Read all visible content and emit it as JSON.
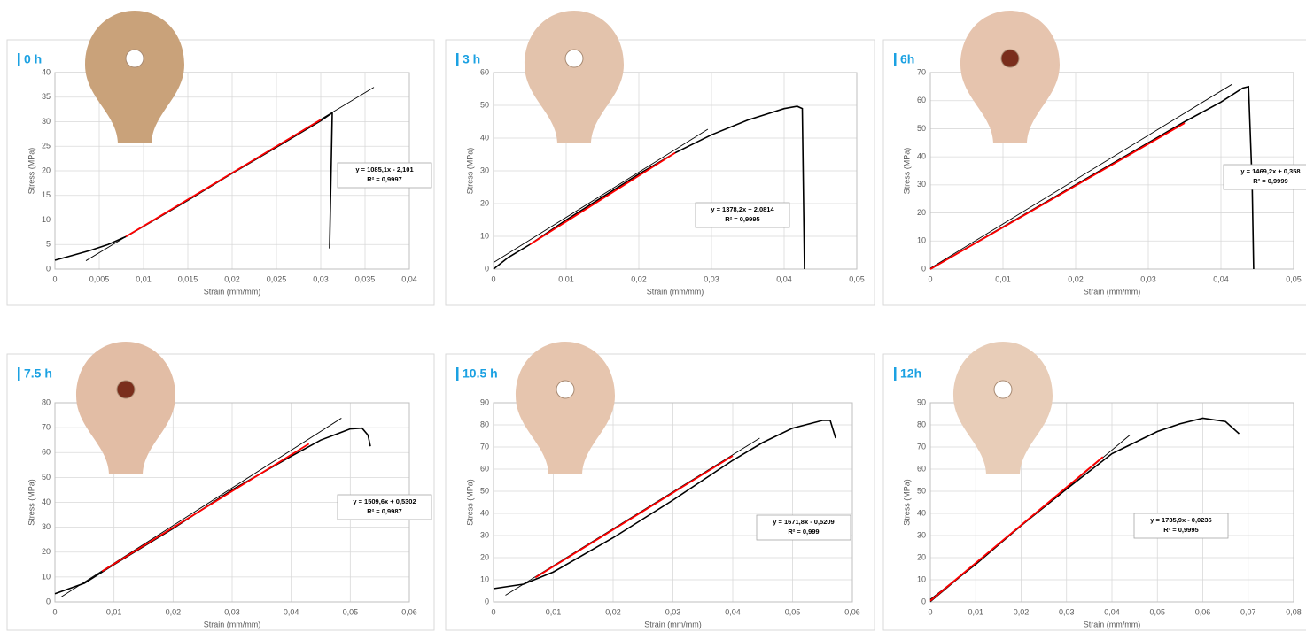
{
  "chart_data": [
    {
      "type": "line",
      "title": "0 h",
      "x_label": "Strain (mm/mm)",
      "y_label": "Stress (MPa)",
      "grid": true,
      "xlim": [
        0,
        0.04
      ],
      "ylim": [
        0,
        40
      ],
      "xticks": [
        0,
        {
          "value": 0.005,
          "label": "0,005"
        },
        {
          "value": 0.01,
          "label": "0,01"
        },
        {
          "value": 0.015,
          "label": "0,015"
        },
        {
          "value": 0.02,
          "label": "0,02"
        },
        {
          "value": 0.025,
          "label": "0,025"
        },
        {
          "value": 0.03,
          "label": "0,03"
        },
        {
          "value": 0.035,
          "label": "0,035"
        },
        {
          "value": 0.04,
          "label": "0,04"
        }
      ],
      "yticks": [
        0,
        5,
        10,
        15,
        20,
        25,
        30,
        35,
        40
      ],
      "series": [
        {
          "color": "#000000",
          "x": [
            0,
            0.002,
            0.004,
            0.006,
            0.008,
            0.01,
            0.015,
            0.02,
            0.025,
            0.03,
            0.0313,
            0.031
          ],
          "values": [
            1.8,
            2.8,
            3.8,
            5,
            6.6,
            8.7,
            14,
            19.5,
            24.8,
            30.2,
            31.8,
            4.2
          ]
        },
        {
          "color": "#000000",
          "x": [
            0.0035,
            0.036
          ],
          "values": [
            1.7,
            37
          ]
        },
        {
          "color": "#ff0000",
          "x": [
            0.008,
            0.03
          ],
          "values": [
            6.6,
            30.4
          ]
        }
      ],
      "annotations": [
        "y = 1085,1x - 2,101",
        "R² = 0,9997"
      ]
    },
    {
      "type": "line",
      "title": "3 h",
      "x_label": "Strain (mm/mm)",
      "y_label": "Stress (MPa)",
      "grid": true,
      "xlim": [
        0,
        0.05
      ],
      "ylim": [
        0,
        60
      ],
      "xticks": [
        0,
        {
          "value": 0.01,
          "label": "0,01"
        },
        {
          "value": 0.02,
          "label": "0,02"
        },
        {
          "value": 0.03,
          "label": "0,03"
        },
        {
          "value": 0.04,
          "label": "0,04"
        },
        {
          "value": 0.05,
          "label": "0,05"
        }
      ],
      "yticks": [
        0,
        10,
        20,
        30,
        40,
        50,
        60
      ],
      "series": [
        {
          "color": "#000000",
          "x": [
            0,
            0.002,
            0.005,
            0.01,
            0.015,
            0.02,
            0.025,
            0.03,
            0.035,
            0.04,
            0.0418,
            0.0425,
            0.0428
          ],
          "values": [
            0,
            3.5,
            7.5,
            15,
            22,
            29,
            35.5,
            41,
            45.5,
            49,
            49.7,
            49,
            0
          ]
        },
        {
          "color": "#000000",
          "x": [
            0,
            0.0295
          ],
          "values": [
            2,
            42.7
          ]
        },
        {
          "color": "#ff0000",
          "x": [
            0.005,
            0.025
          ],
          "values": [
            7.5,
            35.5
          ]
        }
      ],
      "annotations": [
        "y = 1378,2x + 2,0814",
        "R² = 0,9995"
      ]
    },
    {
      "type": "line",
      "title": "6h",
      "x_label": "Strain (mm/mm)",
      "y_label": "Stress (MPa)",
      "grid": true,
      "xlim": [
        0,
        0.05
      ],
      "ylim": [
        0,
        70
      ],
      "xticks": [
        0,
        {
          "value": 0.01,
          "label": "0,01"
        },
        {
          "value": 0.02,
          "label": "0,02"
        },
        {
          "value": 0.03,
          "label": "0,03"
        },
        {
          "value": 0.04,
          "label": "0,04"
        },
        {
          "value": 0.05,
          "label": "0,05"
        }
      ],
      "yticks": [
        0,
        10,
        20,
        30,
        40,
        50,
        60,
        70
      ],
      "series": [
        {
          "color": "#000000",
          "x": [
            0,
            0.005,
            0.01,
            0.02,
            0.03,
            0.035,
            0.04,
            0.043,
            0.0438,
            0.0443,
            0.0445
          ],
          "values": [
            0,
            7.5,
            15,
            30,
            45,
            52.5,
            59.5,
            64.5,
            65,
            30,
            0
          ]
        },
        {
          "color": "#000000",
          "x": [
            0,
            0.0415
          ],
          "values": [
            0.3,
            65.8
          ]
        },
        {
          "color": "#ff0000",
          "x": [
            0,
            0.035
          ],
          "values": [
            0,
            52
          ]
        }
      ],
      "annotations": [
        "y = 1469,2x + 0,358",
        "R² = 0,9999"
      ]
    },
    {
      "type": "line",
      "title": "7.5 h",
      "x_label": "Strain (mm/mm)",
      "y_label": "Stress (MPa)",
      "grid": true,
      "xlim": [
        0,
        0.06
      ],
      "ylim": [
        0,
        80
      ],
      "xticks": [
        0,
        {
          "value": 0.01,
          "label": "0,01"
        },
        {
          "value": 0.02,
          "label": "0,02"
        },
        {
          "value": 0.03,
          "label": "0,03"
        },
        {
          "value": 0.04,
          "label": "0,04"
        },
        {
          "value": 0.05,
          "label": "0,05"
        },
        {
          "value": 0.06,
          "label": "0,06"
        }
      ],
      "yticks": [
        0,
        10,
        20,
        30,
        40,
        50,
        60,
        70,
        80
      ],
      "series": [
        {
          "color": "#000000",
          "x": [
            0,
            0.005,
            0.01,
            0.02,
            0.03,
            0.04,
            0.045,
            0.05,
            0.052,
            0.053,
            0.0534
          ],
          "values": [
            3.3,
            7.5,
            15,
            29.5,
            45,
            58.5,
            65,
            69.5,
            69.8,
            67,
            62.5
          ]
        },
        {
          "color": "#000000",
          "x": [
            0.001,
            0.0485
          ],
          "values": [
            1.9,
            73.8
          ]
        },
        {
          "color": "#ff0000",
          "x": [
            0.008,
            0.043
          ],
          "values": [
            12.3,
            63.5
          ]
        }
      ],
      "annotations": [
        "y = 1509,6x + 0,5302",
        "R² = 0,9987"
      ]
    },
    {
      "type": "line",
      "title": "10.5 h",
      "x_label": "Strain (mm/mm)",
      "y_label": "Stress (MPa)",
      "grid": true,
      "xlim": [
        0,
        0.06
      ],
      "ylim": [
        0,
        90
      ],
      "xticks": [
        0,
        {
          "value": 0.01,
          "label": "0,01"
        },
        {
          "value": 0.02,
          "label": "0,02"
        },
        {
          "value": 0.03,
          "label": "0,03"
        },
        {
          "value": 0.04,
          "label": "0,04"
        },
        {
          "value": 0.05,
          "label": "0,05"
        },
        {
          "value": 0.06,
          "label": "0,06"
        }
      ],
      "yticks": [
        0,
        10,
        20,
        30,
        40,
        50,
        60,
        70,
        80,
        90
      ],
      "series": [
        {
          "color": "#000000",
          "x": [
            0,
            0.005,
            0.01,
            0.02,
            0.03,
            0.04,
            0.045,
            0.05,
            0.055,
            0.0563,
            0.0572
          ],
          "values": [
            6,
            8,
            13.5,
            29,
            46,
            64,
            72,
            78.5,
            82,
            82,
            74
          ]
        },
        {
          "color": "#000000",
          "x": [
            0.002,
            0.0445
          ],
          "values": [
            3,
            74
          ]
        },
        {
          "color": "#ff0000",
          "x": [
            0.007,
            0.04
          ],
          "values": [
            11,
            66
          ]
        }
      ],
      "annotations": [
        "y = 1671,8x - 0,5209",
        "R² = 0,999"
      ]
    },
    {
      "type": "line",
      "title": "12h",
      "x_label": "Strain (mm/mm)",
      "y_label": "Stress (MPa)",
      "grid": true,
      "xlim": [
        0,
        0.08
      ],
      "ylim": [
        0,
        90
      ],
      "xticks": [
        0,
        {
          "value": 0.01,
          "label": "0,01"
        },
        {
          "value": 0.02,
          "label": "0,02"
        },
        {
          "value": 0.03,
          "label": "0,03"
        },
        {
          "value": 0.04,
          "label": "0,04"
        },
        {
          "value": 0.05,
          "label": "0,05"
        },
        {
          "value": 0.06,
          "label": "0,06"
        },
        {
          "value": 0.07,
          "label": "0,07"
        },
        {
          "value": 0.08,
          "label": "0,08"
        }
      ],
      "yticks": [
        0,
        10,
        20,
        30,
        40,
        50,
        60,
        70,
        80,
        90
      ],
      "series": [
        {
          "color": "#000000",
          "x": [
            0,
            0.01,
            0.02,
            0.03,
            0.04,
            0.045,
            0.05,
            0.055,
            0.06,
            0.065,
            0.068
          ],
          "values": [
            1,
            17,
            34.5,
            51,
            67,
            72,
            77,
            80.5,
            83,
            81.5,
            76
          ]
        },
        {
          "color": "#000000",
          "x": [
            0,
            0.044
          ],
          "values": [
            0,
            75.5
          ]
        },
        {
          "color": "#ff0000",
          "x": [
            0,
            0.038
          ],
          "values": [
            0.5,
            65.5
          ]
        }
      ],
      "annotations": [
        "y = 1735,9x - 0,0236",
        "R² = 0,9995"
      ]
    }
  ]
}
